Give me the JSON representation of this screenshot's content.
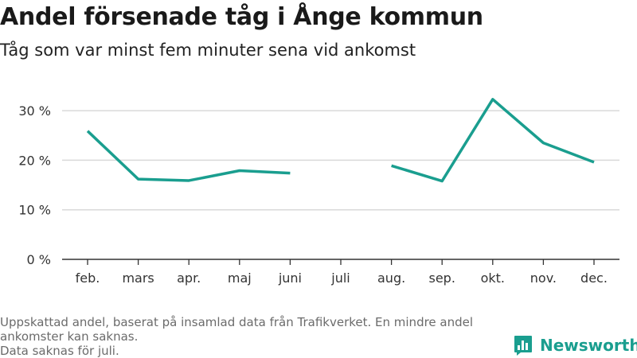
{
  "header": {
    "title": "Andel försenade tåg i Ånge kommun",
    "subtitle": "Tåg som var minst fem minuter sena vid ankomst"
  },
  "footer": {
    "note_lines": [
      "Uppskattad andel, baserat på insamlad data från Trafikverket. En mindre andel",
      "ankomster kan saknas.",
      "Data saknas för juli."
    ],
    "logo_text": "Newsworthy"
  },
  "colors": {
    "line": "#1a9e8f",
    "grid": "#d9d9d9",
    "axis": "#333333"
  },
  "chart_data": {
    "type": "line",
    "title": "Andel försenade tåg i Ånge kommun",
    "subtitle": "Tåg som var minst fem minuter sena vid ankomst",
    "categories": [
      "feb.",
      "mars",
      "apr.",
      "maj",
      "juni",
      "juli",
      "aug.",
      "sep.",
      "okt.",
      "nov.",
      "dec."
    ],
    "series": [
      {
        "values": [
          25.9,
          16.2,
          15.9,
          17.9,
          17.4,
          null,
          18.9,
          15.8,
          32.3,
          23.5,
          19.6
        ]
      }
    ],
    "ylim": [
      0,
      35
    ],
    "yticks": [
      0,
      10,
      20,
      30
    ],
    "ytick_labels": [
      "0 %",
      "10 %",
      "20 %",
      "30 %"
    ],
    "grid": true,
    "xlabel": "",
    "ylabel": ""
  }
}
